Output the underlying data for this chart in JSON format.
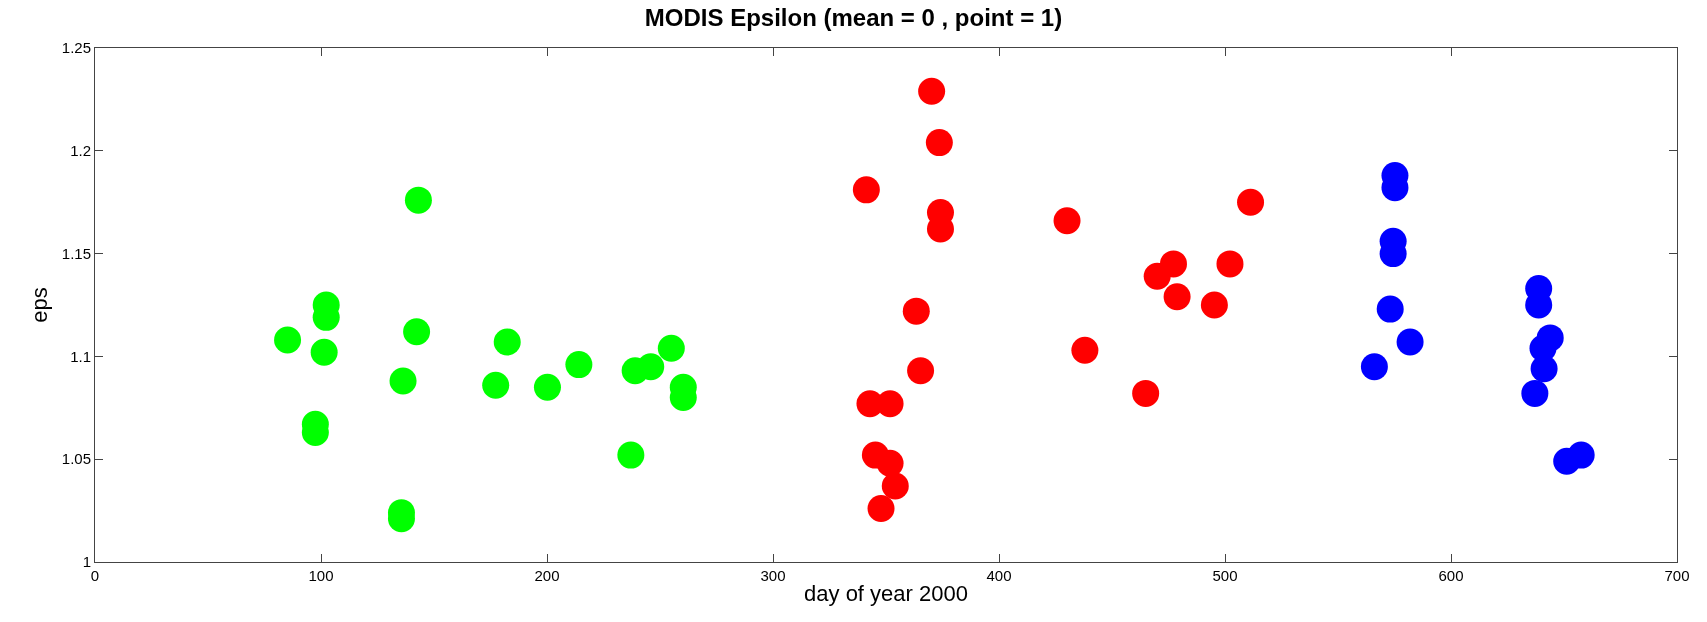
{
  "chart_data": {
    "type": "scatter",
    "title": "MODIS Epsilon (mean = 0 , point = 1)",
    "xlabel": "day of year 2000",
    "ylabel": "eps",
    "xlim": [
      0,
      700
    ],
    "xticks": [
      0,
      100,
      200,
      300,
      400,
      500,
      600,
      700
    ],
    "ylim": [
      1,
      1.25
    ],
    "yticks": [
      1,
      1.05,
      1.1,
      1.15,
      1.2,
      1.25
    ],
    "marker": "circle",
    "series": [
      {
        "color": "#00ff00",
        "x": [
          85.2,
          97.5,
          97.5,
          102.3,
          102.3,
          101.4,
          143.1,
          142.3,
          136.3,
          135.6,
          135.6,
          182.4,
          177.3,
          200.2,
          214.1,
          239.0,
          245.9,
          237.1,
          255.0,
          260.3,
          260.3
        ],
        "values": [
          1.108,
          1.067,
          1.063,
          1.125,
          1.119,
          1.102,
          1.176,
          1.112,
          1.088,
          1.024,
          1.021,
          1.107,
          1.086,
          1.085,
          1.096,
          1.093,
          1.095,
          1.052,
          1.104,
          1.085,
          1.08
        ]
      },
      {
        "color": "#ff0000",
        "x": [
          370.2,
          373.6,
          341.3,
          374.1,
          374.1,
          430.1,
          477.2,
          470.0,
          478.8,
          363.4,
          438.0,
          365.3,
          464.9,
          342.9,
          351.8,
          345.3,
          351.8,
          354.1,
          347.8,
          511.3,
          502.2,
          495.3
        ],
        "values": [
          1.229,
          1.204,
          1.181,
          1.17,
          1.162,
          1.166,
          1.145,
          1.139,
          1.129,
          1.122,
          1.103,
          1.093,
          1.082,
          1.077,
          1.077,
          1.052,
          1.048,
          1.037,
          1.026,
          1.175,
          1.145,
          1.125
        ]
      },
      {
        "color": "#0000ff",
        "x": [
          575.2,
          575.2,
          574.4,
          574.4,
          573.1,
          581.9,
          566.1,
          638.8,
          638.8,
          643.9,
          640.7,
          641.2,
          637.1,
          651.2,
          657.6
        ],
        "values": [
          1.188,
          1.182,
          1.156,
          1.15,
          1.123,
          1.107,
          1.095,
          1.133,
          1.125,
          1.109,
          1.104,
          1.094,
          1.082,
          1.049,
          1.052
        ]
      }
    ]
  }
}
